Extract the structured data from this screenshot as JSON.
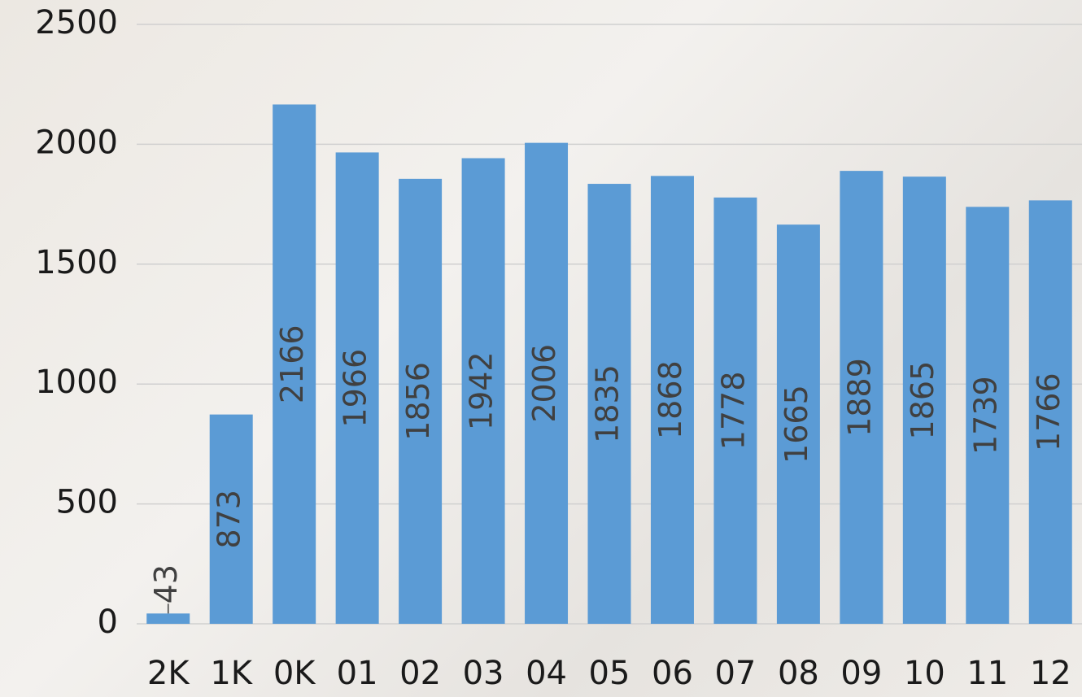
{
  "chart_data": {
    "type": "bar",
    "categories": [
      "2K",
      "1K",
      "0K",
      "01",
      "02",
      "03",
      "04",
      "05",
      "06",
      "07",
      "08",
      "09",
      "10",
      "11",
      "12"
    ],
    "values": [
      43,
      873,
      2166,
      1966,
      1856,
      1942,
      2006,
      1835,
      1868,
      1778,
      1665,
      1889,
      1865,
      1739,
      1766
    ],
    "color": "#5b9bd5",
    "ylim": [
      0,
      2500
    ],
    "yticks": [
      0,
      500,
      1000,
      1500,
      2000,
      2500
    ],
    "grid": true
  }
}
